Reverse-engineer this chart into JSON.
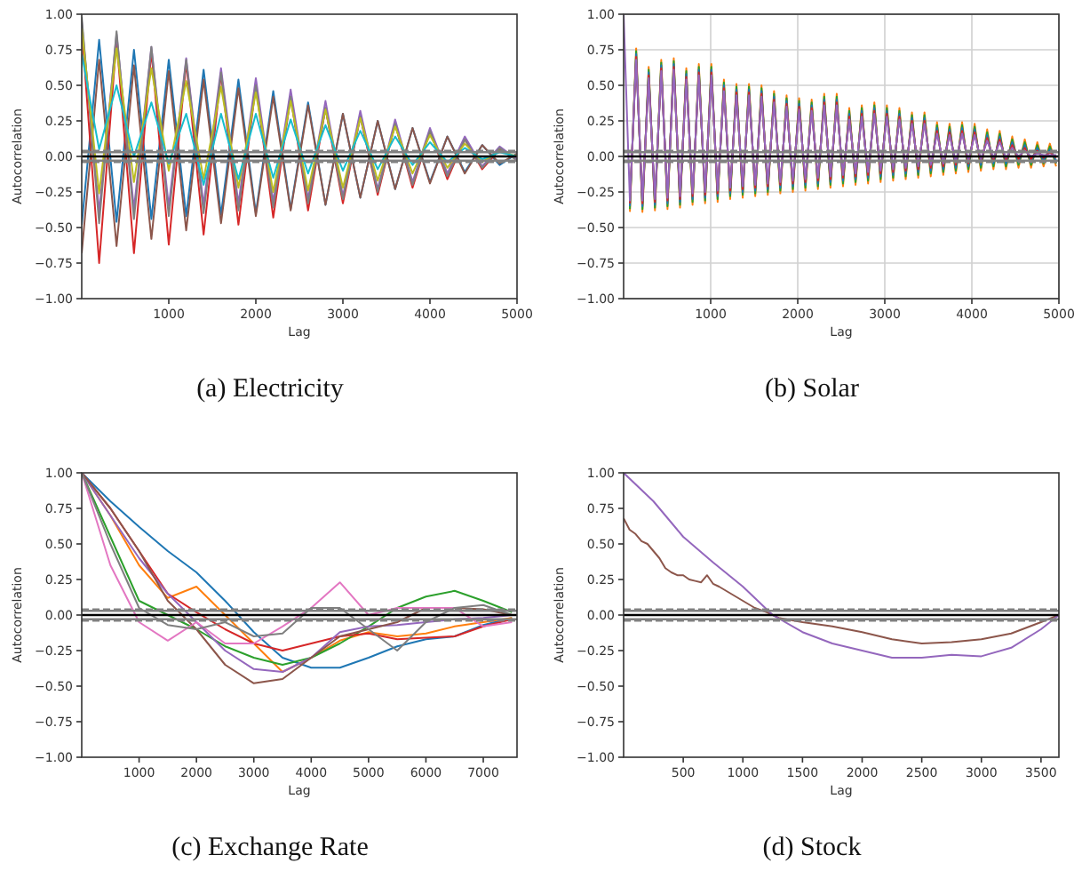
{
  "chart_data": [
    {
      "type": "line",
      "title": "(a)  Electricity",
      "xlabel": "Lag",
      "ylabel": "Autocorrelation",
      "xlim": [
        0,
        5000
      ],
      "xticks": [
        1000,
        2000,
        3000,
        4000,
        5000
      ],
      "ylim": [
        -1,
        1
      ],
      "yticks": [
        {
          "value": -1,
          "label": "−1.00"
        },
        {
          "value": -0.75,
          "label": "−0.75"
        },
        {
          "value": -0.5,
          "label": "−0.50"
        },
        {
          "value": -0.25,
          "label": "−0.25"
        },
        {
          "value": 0,
          "label": "0.00"
        },
        {
          "value": 0.25,
          "label": "0.25"
        },
        {
          "value": 0.5,
          "label": "0.50"
        },
        {
          "value": 0.75,
          "label": "0.75"
        },
        {
          "value": 1,
          "label": "1.00"
        }
      ],
      "grid": false,
      "x": [
        0,
        200,
        400,
        600,
        800,
        1000,
        1200,
        1400,
        1600,
        1800,
        2000,
        2200,
        2400,
        2600,
        2800,
        3000,
        3200,
        3400,
        3600,
        3800,
        4000,
        4200,
        4400,
        4600,
        4800,
        5000
      ],
      "series": [
        {
          "color": "#1f77b4",
          "values": [
            -0.48,
            0.82,
            -0.46,
            0.75,
            -0.44,
            0.68,
            -0.42,
            0.61,
            -0.41,
            0.54,
            -0.4,
            0.46,
            -0.37,
            0.38,
            -0.34,
            0.3,
            -0.29,
            0.25,
            -0.23,
            0.2,
            -0.18,
            0.14,
            -0.11,
            0.08,
            -0.06,
            0.02
          ]
        },
        {
          "color": "#d62728",
          "values": [
            0.9,
            -0.75,
            0.82,
            -0.68,
            0.74,
            -0.62,
            0.66,
            -0.55,
            0.58,
            -0.48,
            0.5,
            -0.43,
            0.42,
            -0.38,
            0.34,
            -0.33,
            0.28,
            -0.27,
            0.23,
            -0.22,
            0.18,
            -0.16,
            0.12,
            -0.09,
            0.05,
            -0.02
          ]
        },
        {
          "color": "#9467bd",
          "values": [
            0.95,
            -0.39,
            0.86,
            -0.37,
            0.77,
            -0.35,
            0.69,
            -0.34,
            0.62,
            -0.33,
            0.55,
            -0.32,
            0.47,
            -0.3,
            0.39,
            -0.28,
            0.32,
            -0.23,
            0.26,
            -0.18,
            0.2,
            -0.12,
            0.14,
            -0.07,
            0.07,
            -0.02
          ]
        },
        {
          "color": "#8c564b",
          "values": [
            -0.68,
            0.68,
            -0.63,
            0.64,
            -0.58,
            0.6,
            -0.52,
            0.54,
            -0.47,
            0.48,
            -0.42,
            0.42,
            -0.38,
            0.36,
            -0.34,
            0.3,
            -0.29,
            0.25,
            -0.23,
            0.2,
            -0.19,
            0.14,
            -0.12,
            0.08,
            -0.05,
            0.02
          ]
        },
        {
          "color": "#7f7f7f",
          "values": [
            0.98,
            -0.47,
            0.88,
            -0.44,
            0.77,
            -0.42,
            0.68,
            -0.4,
            0.59,
            -0.38,
            0.5,
            -0.36,
            0.42,
            -0.33,
            0.34,
            -0.3,
            0.28,
            -0.25,
            0.23,
            -0.2,
            0.18,
            -0.14,
            0.12,
            -0.08,
            0.06,
            -0.03
          ]
        },
        {
          "color": "#bcbd22",
          "values": [
            0.9,
            -0.26,
            0.76,
            -0.18,
            0.62,
            -0.1,
            0.53,
            -0.16,
            0.49,
            -0.22,
            0.45,
            -0.25,
            0.39,
            -0.24,
            0.33,
            -0.22,
            0.27,
            -0.17,
            0.21,
            -0.12,
            0.15,
            -0.08,
            0.09,
            -0.04,
            0.04,
            0
          ]
        },
        {
          "color": "#17becf",
          "values": [
            0.72,
            0.05,
            0.5,
            0,
            0.38,
            -0.05,
            0.3,
            -0.2,
            0.3,
            -0.16,
            0.3,
            -0.15,
            0.26,
            -0.12,
            0.22,
            -0.1,
            0.18,
            -0.09,
            0.14,
            -0.06,
            0.1,
            -0.04,
            0.06,
            -0.02,
            0.03,
            0
          ]
        }
      ],
      "ref_lines": [
        {
          "axis": "y",
          "value": 0.04,
          "color": "#808080",
          "line_style": "dashed"
        },
        {
          "axis": "y",
          "value": 0.03,
          "color": "#808080",
          "line_style": "solid"
        },
        {
          "axis": "y",
          "value": 0,
          "color": "#000000",
          "line_style": "solid"
        },
        {
          "axis": "y",
          "value": -0.03,
          "color": "#808080",
          "line_style": "solid"
        },
        {
          "axis": "y",
          "value": -0.04,
          "color": "#808080",
          "line_style": "dashed"
        }
      ]
    },
    {
      "type": "line",
      "title": "(b)  Solar",
      "xlabel": "Lag",
      "ylabel": "Autocorrelation",
      "xlim": [
        0,
        5000
      ],
      "xticks": [
        1000,
        2000,
        3000,
        4000,
        5000
      ],
      "ylim": [
        -1,
        1
      ],
      "yticks": [
        {
          "value": -1,
          "label": "−1.00"
        },
        {
          "value": -0.75,
          "label": "−0.75"
        },
        {
          "value": -0.5,
          "label": "−0.50"
        },
        {
          "value": -0.25,
          "label": "−0.25"
        },
        {
          "value": 0,
          "label": "0.00"
        },
        {
          "value": 0.25,
          "label": "0.25"
        },
        {
          "value": 0.5,
          "label": "0.50"
        },
        {
          "value": 0.75,
          "label": "0.75"
        },
        {
          "value": 1,
          "label": "1.00"
        }
      ],
      "grid": true,
      "x": [
        0,
        72,
        144,
        216,
        288,
        360,
        432,
        504,
        576,
        648,
        720,
        792,
        864,
        936,
        1008,
        1080,
        1152,
        1224,
        1296,
        1368,
        1440,
        1512,
        1584,
        1656,
        1728,
        1800,
        1872,
        1944,
        2016,
        2088,
        2160,
        2232,
        2304,
        2376,
        2448,
        2520,
        2592,
        2664,
        2736,
        2808,
        2880,
        2952,
        3024,
        3096,
        3168,
        3240,
        3312,
        3384,
        3456,
        3528,
        3600,
        3672,
        3744,
        3816,
        3888,
        3960,
        4032,
        4104,
        4176,
        4248,
        4320,
        4392,
        4464,
        4536,
        4608,
        4680,
        4752,
        4824,
        4896,
        4968
      ],
      "series": [
        {
          "color": "#ff7f0e",
          "values": [
            null,
            -0.39,
            0.76,
            -0.39,
            0.63,
            -0.38,
            0.68,
            -0.37,
            0.69,
            -0.36,
            0.62,
            -0.34,
            0.65,
            -0.33,
            0.65,
            -0.32,
            0.54,
            -0.3,
            0.51,
            -0.29,
            0.51,
            -0.28,
            0.5,
            -0.27,
            0.46,
            -0.26,
            0.43,
            -0.25,
            0.41,
            -0.24,
            0.4,
            -0.23,
            0.44,
            -0.22,
            0.44,
            -0.21,
            0.34,
            -0.2,
            0.36,
            -0.19,
            0.38,
            -0.18,
            0.36,
            -0.17,
            0.34,
            -0.16,
            0.31,
            -0.15,
            0.31,
            -0.14,
            0.24,
            -0.13,
            0.23,
            -0.12,
            0.24,
            -0.11,
            0.23,
            -0.1,
            0.19,
            -0.09,
            0.18,
            -0.09,
            0.14,
            -0.08,
            0.12,
            -0.08,
            0.1,
            -0.07,
            0.09,
            -0.07
          ]
        },
        {
          "color": "#2ca02c",
          "values": [
            null,
            -0.37,
            0.74,
            -0.37,
            0.61,
            -0.36,
            0.66,
            -0.35,
            0.67,
            -0.34,
            0.6,
            -0.32,
            0.63,
            -0.31,
            0.63,
            -0.3,
            0.52,
            -0.28,
            0.49,
            -0.27,
            0.49,
            -0.26,
            0.48,
            -0.25,
            0.44,
            -0.24,
            0.41,
            -0.23,
            0.39,
            -0.22,
            0.38,
            -0.21,
            0.42,
            -0.2,
            0.42,
            -0.19,
            0.32,
            -0.18,
            0.34,
            -0.17,
            0.36,
            -0.16,
            0.34,
            -0.15,
            0.32,
            -0.14,
            0.29,
            -0.13,
            0.29,
            -0.12,
            0.22,
            -0.11,
            0.21,
            -0.1,
            0.22,
            -0.09,
            0.21,
            -0.08,
            0.17,
            -0.07,
            0.16,
            -0.07,
            0.12,
            -0.06,
            0.1,
            -0.06,
            0.08,
            -0.05,
            0.07,
            -0.05
          ]
        },
        {
          "color": "#1f77b4",
          "values": [
            null,
            -0.35,
            0.72,
            -0.35,
            0.59,
            -0.34,
            0.64,
            -0.33,
            0.65,
            -0.32,
            0.58,
            -0.3,
            0.61,
            -0.29,
            0.61,
            -0.28,
            0.5,
            -0.26,
            0.47,
            -0.25,
            0.47,
            -0.24,
            0.46,
            -0.23,
            0.42,
            -0.22,
            0.39,
            -0.21,
            0.37,
            -0.2,
            0.36,
            -0.19,
            0.4,
            -0.18,
            0.4,
            -0.17,
            0.3,
            -0.16,
            0.32,
            -0.15,
            0.34,
            -0.14,
            0.32,
            -0.13,
            0.3,
            -0.12,
            0.27,
            -0.11,
            0.27,
            -0.1,
            0.2,
            -0.09,
            0.19,
            -0.08,
            0.2,
            -0.07,
            0.19,
            -0.06,
            0.15,
            -0.05,
            0.14,
            -0.05,
            0.1,
            -0.04,
            0.08,
            -0.04,
            0.06,
            -0.03,
            0.05,
            -0.03
          ]
        },
        {
          "color": "#d62728",
          "values": [
            null,
            -0.33,
            0.7,
            -0.33,
            0.57,
            -0.32,
            0.62,
            -0.31,
            0.63,
            -0.3,
            0.56,
            -0.28,
            0.59,
            -0.27,
            0.59,
            -0.26,
            0.48,
            -0.24,
            0.45,
            -0.23,
            0.45,
            -0.22,
            0.44,
            -0.21,
            0.4,
            -0.2,
            0.37,
            -0.19,
            0.35,
            -0.18,
            0.34,
            -0.17,
            0.38,
            -0.16,
            0.38,
            -0.15,
            0.28,
            -0.14,
            0.3,
            -0.13,
            0.32,
            -0.12,
            0.3,
            -0.11,
            0.28,
            -0.1,
            0.25,
            -0.09,
            0.25,
            -0.08,
            0.18,
            -0.07,
            0.17,
            -0.06,
            0.18,
            -0.05,
            0.17,
            -0.04,
            0.13,
            -0.03,
            0.12,
            -0.03,
            0.08,
            -0.02,
            0.06,
            -0.02,
            0.04,
            -0.01,
            0.03,
            -0.01
          ]
        },
        {
          "color": "#9467bd",
          "values": [
            1.0,
            -0.31,
            0.68,
            -0.31,
            0.55,
            -0.3,
            0.6,
            -0.29,
            0.61,
            -0.28,
            0.54,
            -0.26,
            0.57,
            -0.25,
            0.57,
            -0.24,
            0.46,
            -0.22,
            0.43,
            -0.21,
            0.43,
            -0.2,
            0.42,
            -0.19,
            0.38,
            -0.18,
            0.35,
            -0.17,
            0.33,
            -0.16,
            0.32,
            -0.15,
            0.36,
            -0.14,
            0.36,
            -0.13,
            0.26,
            -0.12,
            0.28,
            -0.11,
            0.3,
            -0.1,
            0.28,
            -0.09,
            0.26,
            -0.08,
            0.23,
            -0.07,
            0.23,
            -0.06,
            0.16,
            -0.05,
            0.15,
            -0.04,
            0.16,
            -0.03,
            0.15,
            -0.02,
            0.11,
            -0.01,
            0.1,
            -0.01,
            0.06,
            0,
            0.04,
            0,
            0.02,
            0.01,
            0.01,
            0.01
          ]
        }
      ],
      "ref_lines": [
        {
          "axis": "y",
          "value": 0.04,
          "color": "#808080",
          "line_style": "dashed"
        },
        {
          "axis": "y",
          "value": 0.03,
          "color": "#808080",
          "line_style": "solid"
        },
        {
          "axis": "y",
          "value": 0,
          "color": "#000000",
          "line_style": "solid"
        },
        {
          "axis": "y",
          "value": -0.03,
          "color": "#808080",
          "line_style": "solid"
        },
        {
          "axis": "y",
          "value": -0.04,
          "color": "#808080",
          "line_style": "dashed"
        }
      ]
    },
    {
      "type": "line",
      "title": "(c)  Exchange Rate",
      "xlabel": "Lag",
      "ylabel": "Autocorrelation",
      "xlim": [
        0,
        7588
      ],
      "xticks": [
        1000,
        2000,
        3000,
        4000,
        5000,
        6000,
        7000
      ],
      "ylim": [
        -1,
        1
      ],
      "yticks": [
        {
          "value": -1,
          "label": "−1.00"
        },
        {
          "value": -0.75,
          "label": "−0.75"
        },
        {
          "value": -0.5,
          "label": "−0.50"
        },
        {
          "value": -0.25,
          "label": "−0.25"
        },
        {
          "value": 0,
          "label": "0.00"
        },
        {
          "value": 0.25,
          "label": "0.25"
        },
        {
          "value": 0.5,
          "label": "0.50"
        },
        {
          "value": 0.75,
          "label": "0.75"
        },
        {
          "value": 1,
          "label": "1.00"
        }
      ],
      "grid": false,
      "x": [
        0,
        500,
        1000,
        1500,
        2000,
        2500,
        3000,
        3500,
        4000,
        4500,
        5000,
        5500,
        6000,
        6500,
        7000,
        7500
      ],
      "series": [
        {
          "color": "#1f77b4",
          "values": [
            1,
            0.8,
            0.62,
            0.45,
            0.3,
            0.1,
            -0.12,
            -0.3,
            -0.37,
            -0.37,
            -0.3,
            -0.22,
            -0.17,
            -0.15,
            -0.07,
            -0.02
          ]
        },
        {
          "color": "#ff7f0e",
          "values": [
            1,
            0.7,
            0.35,
            0.12,
            0.2,
            0,
            -0.2,
            -0.4,
            -0.3,
            -0.18,
            -0.12,
            -0.15,
            -0.13,
            -0.08,
            -0.05,
            -0.02
          ]
        },
        {
          "color": "#2ca02c",
          "values": [
            1,
            0.55,
            0.1,
            0,
            -0.1,
            -0.22,
            -0.3,
            -0.35,
            -0.3,
            -0.2,
            -0.08,
            0.05,
            0.13,
            0.17,
            0.1,
            0.02
          ]
        },
        {
          "color": "#d62728",
          "values": [
            1,
            0.75,
            0.45,
            0.15,
            0.02,
            -0.1,
            -0.2,
            -0.25,
            -0.2,
            -0.15,
            -0.13,
            -0.17,
            -0.16,
            -0.15,
            -0.08,
            -0.03
          ]
        },
        {
          "color": "#9467bd",
          "values": [
            1,
            0.7,
            0.4,
            0.15,
            -0.05,
            -0.25,
            -0.38,
            -0.4,
            -0.3,
            -0.12,
            -0.08,
            -0.07,
            -0.05,
            -0.03,
            -0.02,
            0
          ]
        },
        {
          "color": "#8c564b",
          "values": [
            1,
            0.75,
            0.45,
            0.1,
            -0.1,
            -0.35,
            -0.48,
            -0.45,
            -0.3,
            -0.15,
            -0.1,
            -0.05,
            0.05,
            0.05,
            0.04,
            0
          ]
        },
        {
          "color": "#e377c2",
          "values": [
            1,
            0.35,
            -0.05,
            -0.18,
            -0.05,
            -0.2,
            -0.2,
            -0.08,
            0.05,
            0.23,
            0,
            0.05,
            0.05,
            0.05,
            -0.08,
            -0.05
          ]
        },
        {
          "color": "#7f7f7f",
          "values": [
            1,
            0.5,
            0.05,
            -0.07,
            -0.1,
            -0.05,
            -0.15,
            -0.13,
            0.05,
            0.05,
            -0.1,
            -0.25,
            -0.05,
            0.05,
            0.07,
            0
          ]
        }
      ],
      "ref_lines": [
        {
          "axis": "y",
          "value": 0.04,
          "color": "#808080",
          "line_style": "dashed"
        },
        {
          "axis": "y",
          "value": 0.03,
          "color": "#808080",
          "line_style": "solid"
        },
        {
          "axis": "y",
          "value": 0,
          "color": "#000000",
          "line_style": "solid"
        },
        {
          "axis": "y",
          "value": -0.03,
          "color": "#808080",
          "line_style": "solid"
        },
        {
          "axis": "y",
          "value": -0.04,
          "color": "#808080",
          "line_style": "dashed"
        }
      ]
    },
    {
      "type": "line",
      "title": "(d)  Stock",
      "xlabel": "Lag",
      "ylabel": "Autocorrelation",
      "xlim": [
        0,
        3650
      ],
      "xticks": [
        500,
        1000,
        1500,
        2000,
        2500,
        3000,
        3500
      ],
      "ylim": [
        -1,
        1
      ],
      "yticks": [
        {
          "value": -1,
          "label": "−1.00"
        },
        {
          "value": -0.75,
          "label": "−0.75"
        },
        {
          "value": -0.5,
          "label": "−0.50"
        },
        {
          "value": -0.25,
          "label": "−0.25"
        },
        {
          "value": 0,
          "label": "0.00"
        },
        {
          "value": 0.25,
          "label": "0.25"
        },
        {
          "value": 0.5,
          "label": "0.50"
        },
        {
          "value": 0.75,
          "label": "0.75"
        },
        {
          "value": 1,
          "label": "1.00"
        }
      ],
      "grid": false,
      "series": [
        {
          "color": "#8c564b",
          "x": [
            0,
            50,
            100,
            150,
            200,
            250,
            300,
            350,
            400,
            450,
            500,
            550,
            600,
            650,
            700,
            750,
            800,
            900,
            1000,
            1100,
            1200,
            1300,
            1500,
            1750,
            2000,
            2250,
            2500,
            2750,
            3000,
            3250,
            3500,
            3650
          ],
          "values": [
            0.68,
            0.6,
            0.57,
            0.52,
            0.5,
            0.45,
            0.4,
            0.33,
            0.3,
            0.28,
            0.28,
            0.25,
            0.24,
            0.23,
            0.28,
            0.22,
            0.2,
            0.15,
            0.1,
            0.05,
            0.02,
            -0.02,
            -0.05,
            -0.08,
            -0.12,
            -0.17,
            -0.2,
            -0.19,
            -0.17,
            -0.13,
            -0.05,
            0
          ]
        },
        {
          "color": "#9467bd",
          "x": [
            0,
            250,
            500,
            750,
            1000,
            1250,
            1500,
            1750,
            2000,
            2250,
            2500,
            2750,
            3000,
            3250,
            3500,
            3650
          ],
          "values": [
            1,
            0.8,
            0.55,
            0.37,
            0.2,
            0,
            -0.12,
            -0.2,
            -0.25,
            -0.3,
            -0.3,
            -0.28,
            -0.29,
            -0.23,
            -0.1,
            0
          ]
        }
      ],
      "ref_lines": [
        {
          "axis": "y",
          "value": 0.04,
          "color": "#808080",
          "line_style": "dashed"
        },
        {
          "axis": "y",
          "value": 0.03,
          "color": "#808080",
          "line_style": "solid"
        },
        {
          "axis": "y",
          "value": 0,
          "color": "#000000",
          "line_style": "solid"
        },
        {
          "axis": "y",
          "value": -0.03,
          "color": "#808080",
          "line_style": "solid"
        },
        {
          "axis": "y",
          "value": -0.04,
          "color": "#808080",
          "line_style": "dashed"
        }
      ]
    }
  ]
}
